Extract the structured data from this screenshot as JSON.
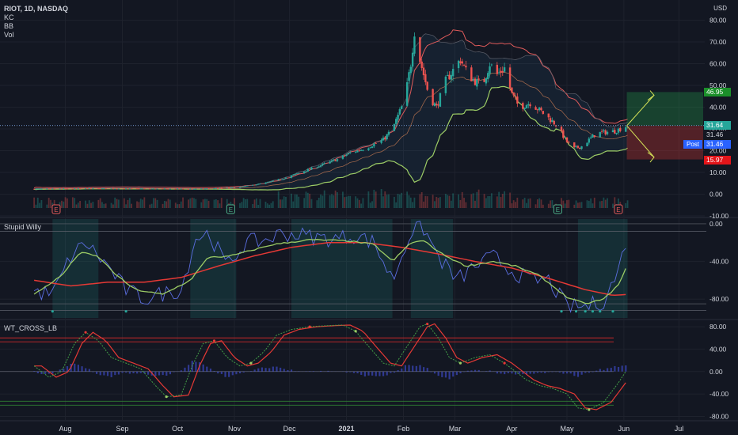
{
  "header": {
    "symbol_line": "RIOT, 1D, NASDAQ",
    "indicators": [
      "KC",
      "BB",
      "Vol"
    ],
    "currency": "USD"
  },
  "panes": {
    "stupid_willy": "Stupid Willy",
    "wt_cross": "WT_CROSS_LB"
  },
  "price_tags": {
    "target": "46.95",
    "last": "31.64",
    "close": "31.46",
    "post_label": "Post",
    "post_value": "31.46",
    "stop": "15.97"
  },
  "colors": {
    "background": "#131722",
    "grid": "#1e222d",
    "up": "#26a69a",
    "down": "#ef5350",
    "kc": "#e05b5b",
    "bb": "#9ccc65",
    "wave": "#5b6ee1",
    "target_tag": "#1b8f2a",
    "stop_tag": "#e3151a",
    "last_tag": "#26a69a",
    "post_tag": "#2962ff"
  },
  "chart_data": [
    {
      "type": "candlestick",
      "symbol": "RIOT",
      "interval": "1D",
      "exchange": "NASDAQ",
      "ylim": [
        -10,
        82
      ],
      "y_ticks": [
        -10,
        0,
        10,
        20,
        30,
        40,
        50,
        60,
        70,
        80
      ],
      "y_tick_labels": [
        "-10.00",
        "0.00",
        "10.00",
        "20.00",
        "30.00",
        "40.00",
        "50.00",
        "60.00",
        "70.00",
        "80.00"
      ],
      "x_ticks": [
        "Aug",
        "Sep",
        "Oct",
        "Nov",
        "Dec",
        "2021",
        "Feb",
        "Mar",
        "Apr",
        "May",
        "Jun",
        "Jul"
      ],
      "x_tick_days": [
        17,
        48,
        78,
        109,
        139,
        170,
        201,
        229,
        260,
        290,
        321,
        351
      ],
      "close_anchors": [
        [
          0,
          2.4
        ],
        [
          30,
          2.6
        ],
        [
          60,
          2.5
        ],
        [
          90,
          2.4
        ],
        [
          110,
          3.0
        ],
        [
          125,
          5.0
        ],
        [
          135,
          7.0
        ],
        [
          145,
          10.0
        ],
        [
          155,
          13.0
        ],
        [
          165,
          16.0
        ],
        [
          172,
          19.0
        ],
        [
          180,
          21.0
        ],
        [
          190,
          25.0
        ],
        [
          195,
          30.0
        ],
        [
          200,
          40.0
        ],
        [
          203,
          50.0
        ],
        [
          205,
          60.0
        ],
        [
          207,
          75.0
        ],
        [
          209,
          65.0
        ],
        [
          212,
          55.0
        ],
        [
          215,
          45.0
        ],
        [
          219,
          40.0
        ],
        [
          224,
          52.0
        ],
        [
          228,
          57.0
        ],
        [
          232,
          62.0
        ],
        [
          236,
          55.0
        ],
        [
          240,
          52.0
        ],
        [
          244,
          50.0
        ],
        [
          248,
          60.0
        ],
        [
          252,
          55.0
        ],
        [
          256,
          58.0
        ],
        [
          260,
          46.0
        ],
        [
          264,
          40.0
        ],
        [
          270,
          42.0
        ],
        [
          276,
          38.0
        ],
        [
          284,
          32.0
        ],
        [
          290,
          24.0
        ],
        [
          294,
          21.0
        ],
        [
          298,
          22.0
        ],
        [
          306,
          28.0
        ],
        [
          316,
          29.0
        ],
        [
          323,
          31.5
        ]
      ],
      "last_price": 31.64,
      "close": 31.46,
      "target": 46.95,
      "stop": 15.97,
      "earnings_markers": [
        {
          "day": 12,
          "color": "red"
        },
        {
          "day": 107,
          "color": "green"
        },
        {
          "day": 285,
          "color": "green"
        },
        {
          "day": 318,
          "color": "red"
        }
      ]
    },
    {
      "type": "line",
      "name": "Stupid Willy",
      "ylim": [
        -100,
        5
      ],
      "y_ticks": [
        0,
        -40,
        -80
      ],
      "y_tick_labels": [
        "0.00",
        "-40.00",
        "-80.00"
      ],
      "wave_anchors": [
        [
          0,
          -72
        ],
        [
          10,
          -75
        ],
        [
          20,
          -35
        ],
        [
          28,
          -20
        ],
        [
          40,
          -45
        ],
        [
          50,
          -70
        ],
        [
          60,
          -80
        ],
        [
          70,
          -74
        ],
        [
          80,
          -70
        ],
        [
          88,
          -15
        ],
        [
          95,
          -10
        ],
        [
          105,
          -45
        ],
        [
          115,
          -20
        ],
        [
          125,
          -18
        ],
        [
          135,
          -10
        ],
        [
          145,
          -12
        ],
        [
          155,
          -15
        ],
        [
          165,
          -16
        ],
        [
          175,
          -12
        ],
        [
          185,
          -20
        ],
        [
          195,
          -60
        ],
        [
          205,
          -8
        ],
        [
          212,
          -5
        ],
        [
          220,
          -35
        ],
        [
          230,
          -60
        ],
        [
          240,
          -45
        ],
        [
          250,
          -35
        ],
        [
          260,
          -50
        ],
        [
          270,
          -60
        ],
        [
          280,
          -60
        ],
        [
          290,
          -88
        ],
        [
          300,
          -88
        ],
        [
          310,
          -82
        ],
        [
          318,
          -50
        ],
        [
          323,
          -10
        ]
      ],
      "fast_anchors": [
        [
          0,
          -75
        ],
        [
          15,
          -55
        ],
        [
          25,
          -30
        ],
        [
          35,
          -35
        ],
        [
          45,
          -55
        ],
        [
          55,
          -70
        ],
        [
          70,
          -75
        ],
        [
          85,
          -60
        ],
        [
          95,
          -35
        ],
        [
          105,
          -35
        ],
        [
          115,
          -30
        ],
        [
          130,
          -22
        ],
        [
          150,
          -17
        ],
        [
          170,
          -18
        ],
        [
          185,
          -22
        ],
        [
          195,
          -40
        ],
        [
          205,
          -20
        ],
        [
          212,
          -18
        ],
        [
          222,
          -32
        ],
        [
          235,
          -45
        ],
        [
          250,
          -40
        ],
        [
          262,
          -45
        ],
        [
          275,
          -55
        ],
        [
          290,
          -78
        ],
        [
          300,
          -85
        ],
        [
          310,
          -80
        ],
        [
          318,
          -65
        ],
        [
          323,
          -44
        ]
      ],
      "slow_anchors": [
        [
          0,
          -60
        ],
        [
          20,
          -66
        ],
        [
          40,
          -62
        ],
        [
          60,
          -62
        ],
        [
          80,
          -57
        ],
        [
          100,
          -45
        ],
        [
          120,
          -34
        ],
        [
          140,
          -25
        ],
        [
          160,
          -20
        ],
        [
          180,
          -20
        ],
        [
          200,
          -25
        ],
        [
          220,
          -32
        ],
        [
          240,
          -40
        ],
        [
          260,
          -47
        ],
        [
          280,
          -58
        ],
        [
          300,
          -70
        ],
        [
          315,
          -76
        ],
        [
          323,
          -75
        ]
      ],
      "upper_levels": [
        0,
        -8
      ],
      "lower_levels": [
        -85,
        -92
      ]
    },
    {
      "type": "line",
      "name": "WT_CROSS_LB",
      "ylim": [
        -85,
        90
      ],
      "y_ticks": [
        80,
        40,
        0,
        -40,
        -80
      ],
      "y_tick_labels": [
        "80.00",
        "40.00",
        "0.00",
        "-40.00",
        "-80.00"
      ],
      "wt_anchors": [
        [
          0,
          10
        ],
        [
          8,
          -10
        ],
        [
          15,
          0
        ],
        [
          22,
          50
        ],
        [
          28,
          70
        ],
        [
          35,
          55
        ],
        [
          42,
          25
        ],
        [
          50,
          15
        ],
        [
          58,
          5
        ],
        [
          66,
          -25
        ],
        [
          72,
          -45
        ],
        [
          80,
          -42
        ],
        [
          86,
          10
        ],
        [
          92,
          50
        ],
        [
          98,
          55
        ],
        [
          105,
          25
        ],
        [
          112,
          10
        ],
        [
          118,
          15
        ],
        [
          125,
          35
        ],
        [
          132,
          65
        ],
        [
          140,
          75
        ],
        [
          150,
          80
        ],
        [
          160,
          82
        ],
        [
          168,
          83
        ],
        [
          175,
          72
        ],
        [
          182,
          45
        ],
        [
          190,
          15
        ],
        [
          196,
          10
        ],
        [
          202,
          40
        ],
        [
          210,
          80
        ],
        [
          214,
          85
        ],
        [
          220,
          60
        ],
        [
          226,
          25
        ],
        [
          232,
          15
        ],
        [
          240,
          25
        ],
        [
          248,
          30
        ],
        [
          256,
          15
        ],
        [
          262,
          0
        ],
        [
          268,
          -15
        ],
        [
          275,
          -25
        ],
        [
          282,
          -30
        ],
        [
          290,
          -40
        ],
        [
          296,
          -65
        ],
        [
          302,
          -68
        ],
        [
          310,
          -55
        ],
        [
          318,
          -20
        ],
        [
          323,
          5
        ]
      ],
      "overbought_levels": [
        60,
        53
      ],
      "oversold_levels": [
        -53,
        -60
      ]
    }
  ]
}
